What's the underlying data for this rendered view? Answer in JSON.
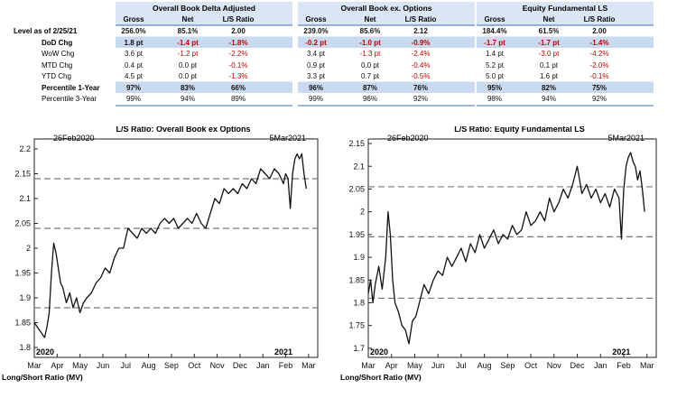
{
  "table": {
    "as_of_label": "Level as of 2/25/21",
    "groups": [
      {
        "title": "Overall Book Delta Adjusted",
        "cols": [
          "Gross",
          "Net",
          "L/S Ratio"
        ]
      },
      {
        "title": "Overall Book ex. Options",
        "cols": [
          "Gross",
          "Net",
          "L/S Ratio"
        ]
      },
      {
        "title": "Equity Fundamental LS",
        "cols": [
          "Gross",
          "Net",
          "L/S Ratio"
        ]
      }
    ],
    "rows": [
      {
        "label": "Level as of 2/25/21",
        "style": "level",
        "values": [
          "256.0%",
          "85.1%",
          "2.00",
          "239.0%",
          "85.6%",
          "2.12",
          "184.4%",
          "61.5%",
          "2.00"
        ]
      },
      {
        "label": "DoD Chg",
        "style": "bold-shaded",
        "values": [
          "1.8 pt",
          "-1.4 pt",
          "-1.8%",
          "-0.2 pt",
          "-1.0 pt",
          "-0.9%",
          "-1.7 pt",
          "-1.7 pt",
          "-1.4%"
        ]
      },
      {
        "label": "WoW Chg",
        "style": "normal",
        "values": [
          "3.6 pt",
          "-1.2 pt",
          "-2.2%",
          "3.4 pt",
          "-1.3 pt",
          "-2.4%",
          "1.4 pt",
          "-3.0 pt",
          "-4.2%"
        ]
      },
      {
        "label": "MTD Chg",
        "style": "normal",
        "values": [
          "0.4 pt",
          "0.0 pt",
          "-0.1%",
          "0.9 pt",
          "0.0 pt",
          "-0.4%",
          "5.2 pt",
          "0.1 pt",
          "-2.0%"
        ]
      },
      {
        "label": "YTD Chg",
        "style": "normal",
        "values": [
          "4.5 pt",
          "0.0 pt",
          "-1.3%",
          "3.3 pt",
          "0.7 pt",
          "-0.5%",
          "5.0 pt",
          "1.6 pt",
          "-0.1%"
        ]
      },
      {
        "label": "Percentile 1-Year",
        "style": "bold-shaded",
        "values": [
          "97%",
          "83%",
          "66%",
          "96%",
          "87%",
          "76%",
          "95%",
          "82%",
          "75%"
        ]
      },
      {
        "label": "Percentile 3-Year",
        "style": "normal",
        "values": [
          "99%",
          "94%",
          "89%",
          "99%",
          "96%",
          "92%",
          "98%",
          "94%",
          "92%"
        ]
      }
    ],
    "colors": {
      "header_bg": "#dbe6f4",
      "shade_bg": "#c9daf0",
      "negative": "#c00000",
      "border": "#3a6fb0"
    }
  },
  "chart_data": [
    {
      "type": "line",
      "title": "L/S Ratio: Overall Book ex Options",
      "start_label": "26Feb2020",
      "end_label": "5Mar2021",
      "year_labels": [
        "2020",
        "2021"
      ],
      "xlabel": "Long/Short Ratio (MV)",
      "ylim": [
        1.78,
        2.22
      ],
      "yticks": [
        1.8,
        1.85,
        1.9,
        1.95,
        2.0,
        2.05,
        2.1,
        2.15,
        2.2
      ],
      "ytick_labels": [
        "1.8",
        "1.85",
        "1.9",
        "1.95",
        "2",
        "2.05",
        "2.1",
        "2.15",
        "2.2"
      ],
      "xlim": [
        0,
        12.4
      ],
      "xticks": [
        0,
        1,
        2,
        3,
        4,
        5,
        6,
        7,
        8,
        9,
        10,
        11,
        12
      ],
      "xtick_labels": [
        "Mar",
        "Apr",
        "May",
        "Jun",
        "Jul",
        "Aug",
        "Sep",
        "Oct",
        "Nov",
        "Dec",
        "Jan",
        "Feb",
        "Mar"
      ],
      "ref_lines": [
        2.14,
        2.04,
        1.88
      ],
      "series": [
        {
          "x": [
            0,
            0.15,
            0.3,
            0.45,
            0.55,
            0.65,
            0.75,
            0.85,
            0.95,
            1.05,
            1.15,
            1.25,
            1.4,
            1.55,
            1.7,
            1.85,
            2.0,
            2.15,
            2.3,
            2.5,
            2.7,
            2.9,
            3.1,
            3.3,
            3.5,
            3.7,
            3.9,
            4.1,
            4.3,
            4.5,
            4.7,
            4.9,
            5.1,
            5.3,
            5.5,
            5.7,
            5.9,
            6.1,
            6.3,
            6.5,
            6.7,
            6.9,
            7.1,
            7.3,
            7.5,
            7.7,
            7.9,
            8.1,
            8.3,
            8.5,
            8.7,
            8.9,
            9.1,
            9.3,
            9.5,
            9.7,
            9.9,
            10.1,
            10.3,
            10.5,
            10.7,
            10.9,
            11.0,
            11.1,
            11.2,
            11.3,
            11.4,
            11.5,
            11.6,
            11.7,
            11.8,
            11.9
          ],
          "y": [
            1.85,
            1.84,
            1.83,
            1.82,
            1.84,
            1.87,
            1.95,
            2.01,
            1.99,
            1.96,
            1.93,
            1.92,
            1.89,
            1.91,
            1.88,
            1.9,
            1.87,
            1.89,
            1.9,
            1.91,
            1.93,
            1.94,
            1.96,
            1.95,
            1.98,
            2.0,
            2.0,
            2.04,
            2.03,
            2.02,
            2.04,
            2.03,
            2.04,
            2.03,
            2.05,
            2.06,
            2.05,
            2.06,
            2.04,
            2.05,
            2.06,
            2.05,
            2.07,
            2.05,
            2.04,
            2.07,
            2.1,
            2.09,
            2.12,
            2.11,
            2.12,
            2.11,
            2.13,
            2.12,
            2.14,
            2.13,
            2.16,
            2.15,
            2.14,
            2.16,
            2.15,
            2.13,
            2.15,
            2.14,
            2.08,
            2.15,
            2.18,
            2.19,
            2.18,
            2.19,
            2.15,
            2.12
          ]
        }
      ]
    },
    {
      "type": "line",
      "title": "L/S Ratio: Equity Fundamental LS",
      "start_label": "26Feb2020",
      "end_label": "5Mar2021",
      "year_labels": [
        "2020",
        "2021"
      ],
      "xlabel": "Long/Short Ratio (MV)",
      "ylim": [
        1.68,
        2.16
      ],
      "yticks": [
        1.7,
        1.75,
        1.8,
        1.85,
        1.9,
        1.95,
        2.0,
        2.05,
        2.1,
        2.15
      ],
      "ytick_labels": [
        "1.7",
        "1.75",
        "1.8",
        "1.85",
        "1.9",
        "1.95",
        "2",
        "2.05",
        "2.1",
        "2.15"
      ],
      "xlim": [
        0,
        12.4
      ],
      "xticks": [
        0,
        1,
        2,
        3,
        4,
        5,
        6,
        7,
        8,
        9,
        10,
        11,
        12
      ],
      "xtick_labels": [
        "Mar",
        "Apr",
        "May",
        "Jun",
        "Jul",
        "Aug",
        "Sep",
        "Oct",
        "Nov",
        "Dec",
        "Jan",
        "Feb",
        "Mar"
      ],
      "ref_lines": [
        2.055,
        1.945,
        1.81
      ],
      "series": [
        {
          "x": [
            0,
            0.1,
            0.2,
            0.3,
            0.45,
            0.6,
            0.75,
            0.85,
            0.95,
            1.05,
            1.15,
            1.3,
            1.45,
            1.6,
            1.75,
            1.9,
            2.05,
            2.2,
            2.4,
            2.6,
            2.8,
            3.0,
            3.2,
            3.4,
            3.6,
            3.8,
            4.0,
            4.2,
            4.4,
            4.6,
            4.8,
            5.0,
            5.2,
            5.4,
            5.6,
            5.8,
            6.0,
            6.2,
            6.4,
            6.6,
            6.8,
            7.0,
            7.2,
            7.4,
            7.6,
            7.8,
            8.0,
            8.2,
            8.4,
            8.6,
            8.8,
            9.0,
            9.2,
            9.4,
            9.6,
            9.8,
            10.0,
            10.2,
            10.4,
            10.6,
            10.8,
            10.9,
            11.0,
            11.1,
            11.2,
            11.3,
            11.4,
            11.5,
            11.6,
            11.7,
            11.8,
            11.9
          ],
          "y": [
            1.82,
            1.85,
            1.8,
            1.84,
            1.88,
            1.83,
            1.9,
            2.0,
            1.95,
            1.85,
            1.8,
            1.78,
            1.75,
            1.74,
            1.71,
            1.76,
            1.77,
            1.8,
            1.84,
            1.82,
            1.85,
            1.87,
            1.86,
            1.9,
            1.88,
            1.9,
            1.92,
            1.89,
            1.93,
            1.91,
            1.95,
            1.92,
            1.94,
            1.96,
            1.93,
            1.95,
            1.94,
            1.97,
            1.95,
            1.96,
            2.0,
            1.97,
            1.98,
            2.0,
            1.98,
            2.03,
            2.0,
            2.02,
            2.05,
            2.03,
            2.06,
            2.1,
            2.04,
            2.06,
            2.03,
            2.05,
            2.02,
            2.04,
            2.01,
            2.05,
            2.03,
            1.94,
            2.05,
            2.1,
            2.12,
            2.13,
            2.11,
            2.1,
            2.07,
            2.09,
            2.05,
            2.0
          ]
        }
      ]
    }
  ]
}
